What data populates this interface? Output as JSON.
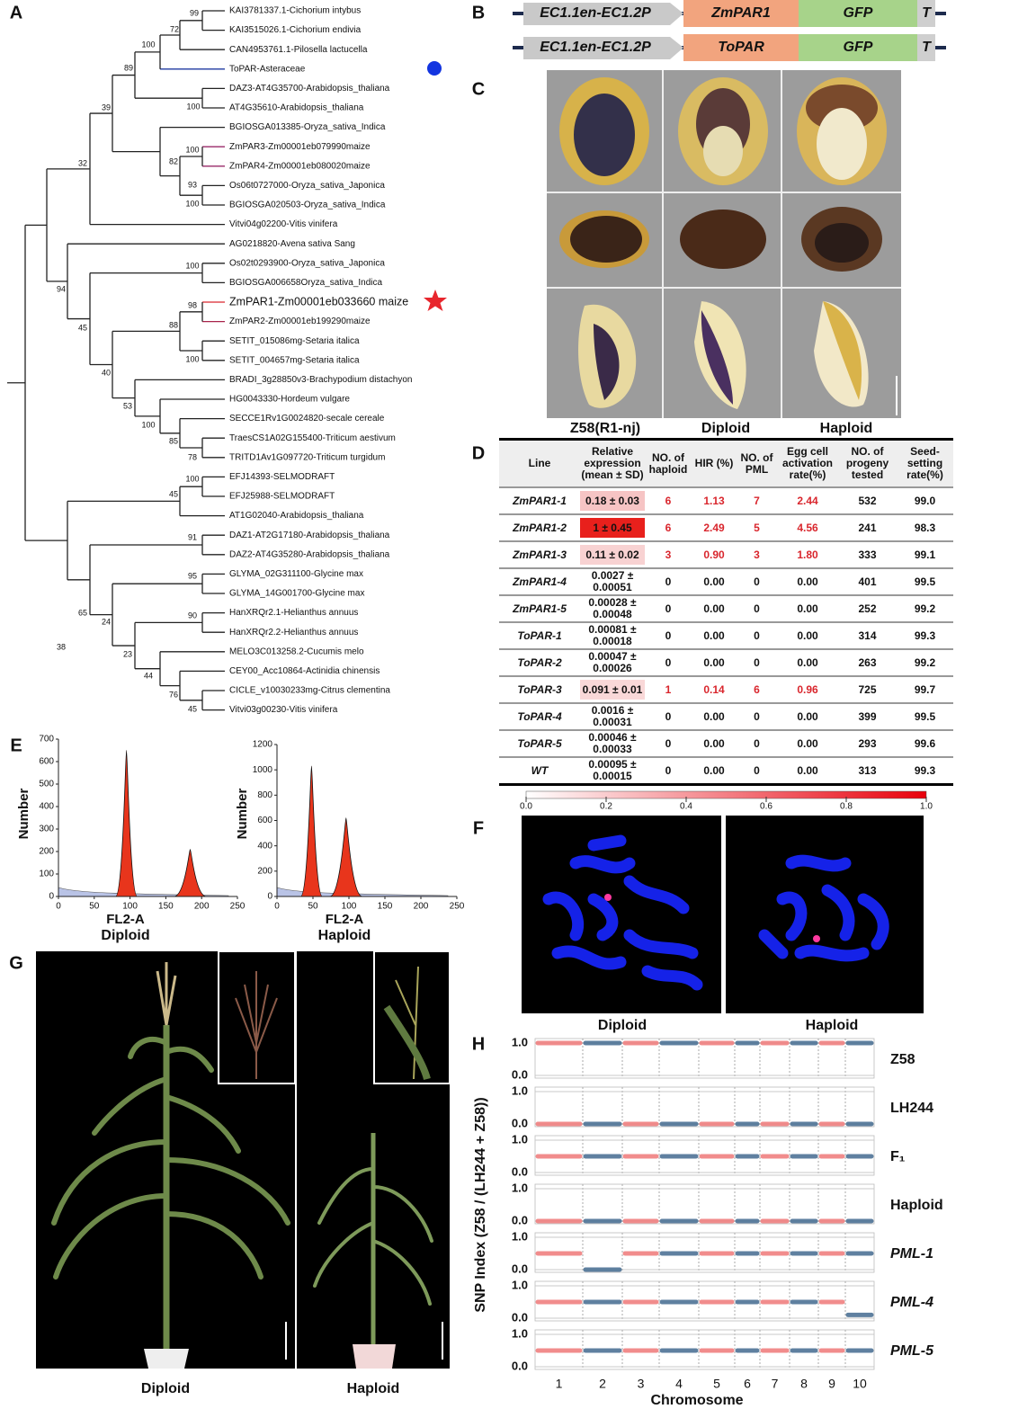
{
  "panel_labels": [
    "A",
    "B",
    "C",
    "D",
    "E",
    "F",
    "G",
    "H"
  ],
  "tree": {
    "leaves": [
      "KAI3781337.1-Cichorium intybus",
      "KAI3515026.1-Cichorium endivia",
      "CAN4953761.1-Pilosella lactucella",
      "ToPAR-Asteraceae",
      "DAZ3-AT4G35700-Arabidopsis_thaliana",
      "AT4G35610-Arabidopsis_thaliana",
      "BGIOSGA013385-Oryza_sativa_Indica",
      "ZmPAR3-Zm00001eb079990maize",
      "ZmPAR4-Zm00001eb080020maize",
      "Os06t0727000-Oryza_sativa_Japonica",
      "BGIOSGA020503-Oryza_sativa_Indica",
      "Vitvi04g02200-Vitis vinifera",
      "AG0218820-Avena sativa Sang",
      "Os02t0293900-Oryza_sativa_Japonica",
      "BGIOSGA006658Oryza_sativa_Indica",
      "ZmPAR1-Zm00001eb033660 maize",
      "ZmPAR2-Zm00001eb199290maize",
      "SETIT_015086mg-Setaria italica",
      "SETIT_004657mg-Setaria italica",
      "BRADI_3g28850v3-Brachypodium distachyon",
      "HG0043330-Hordeum vulgare",
      "SECCE1Rv1G0024820-secale cereale",
      "TraesCS1A02G155400-Triticum aestivum",
      "TRITD1Av1G097720-Triticum turgidum",
      "EFJ14393-SELMODRAFT",
      "EFJ25988-SELMODRAFT",
      "AT1G02040-Arabidopsis_thaliana",
      "DAZ1-AT2G17180-Arabidopsis_thaliana",
      "DAZ2-AT4G35280-Arabidopsis_thaliana",
      "GLYMA_02G311100-Glycine max",
      "GLYMA_14G001700-Glycine max",
      "HanXRQr2.1-Helianthus annuus",
      "HanXRQr2.2-Helianthus annuus",
      "MELO3C013258.2-Cucumis melo",
      "CEY00_Acc10864-Actinidia chinensis",
      "CICLE_v10030233mg-Citrus clementina",
      "Vitvi03g00230-Vitis vinifera"
    ],
    "bootstrap": [
      99,
      72,
      100,
      89,
      39,
      100,
      100,
      82,
      93,
      100,
      32,
      100,
      94,
      98,
      88,
      100,
      45,
      40,
      53,
      100,
      85,
      78,
      100,
      45,
      91,
      95,
      65,
      90,
      24,
      38,
      23,
      44,
      76,
      45
    ]
  },
  "constructs": [
    {
      "promoter": "EC1.1en-EC1.2P",
      "gene": "ZmPAR1",
      "reporter": "GFP",
      "terminator": "T"
    },
    {
      "promoter": "EC1.1en-EC1.2P",
      "gene": "ToPAR",
      "reporter": "GFP",
      "terminator": "T"
    }
  ],
  "kernels": {
    "columns": [
      "Z58(R1-nj)",
      "Diploid",
      "Haploid"
    ]
  },
  "table": {
    "header": [
      "Line",
      "Relative expression (mean ± SD)",
      "NO. of haploid",
      "HIR (%)",
      "NO. of PML",
      "Egg cell activation rate(%)",
      "NO. of progeny tested",
      "Seed-setting rate(%)"
    ],
    "rows": [
      [
        "ZmPAR1-1",
        "0.18 ± 0.03",
        "6",
        "1.13",
        "7",
        "2.44",
        "532",
        "99.0"
      ],
      [
        "ZmPAR1-2",
        "1 ± 0.45",
        "6",
        "2.49",
        "5",
        "4.56",
        "241",
        "98.3"
      ],
      [
        "ZmPAR1-3",
        "0.11 ± 0.02",
        "3",
        "0.90",
        "3",
        "1.80",
        "333",
        "99.1"
      ],
      [
        "ZmPAR1-4",
        "0.0027 ± 0.00051",
        "0",
        "0.00",
        "0",
        "0.00",
        "401",
        "99.5"
      ],
      [
        "ZmPAR1-5",
        "0.00028 ± 0.00048",
        "0",
        "0.00",
        "0",
        "0.00",
        "252",
        "99.2"
      ],
      [
        "ToPAR-1",
        "0.00081 ± 0.00018",
        "0",
        "0.00",
        "0",
        "0.00",
        "314",
        "99.3"
      ],
      [
        "ToPAR-2",
        "0.00047 ± 0.00026",
        "0",
        "0.00",
        "0",
        "0.00",
        "263",
        "99.2"
      ],
      [
        "ToPAR-3",
        "0.091 ± 0.01",
        "1",
        "0.14",
        "6",
        "0.96",
        "725",
        "99.7"
      ],
      [
        "ToPAR-4",
        "0.0016 ± 0.00031",
        "0",
        "0.00",
        "0",
        "0.00",
        "399",
        "99.5"
      ],
      [
        "ToPAR-5",
        "0.00046 ± 0.00033",
        "0",
        "0.00",
        "0",
        "0.00",
        "293",
        "99.6"
      ],
      [
        "WT",
        "0.00095 ± 0.00015",
        "0",
        "0.00",
        "0",
        "0.00",
        "313",
        "99.3"
      ]
    ]
  },
  "color_scale": {
    "xlim": [
      0,
      1
    ],
    "ticks": [
      {
        "value": 0,
        "label": "0.0"
      },
      {
        "value": 0.2,
        "label": "0.2"
      },
      {
        "value": 0.4,
        "label": "0.4"
      },
      {
        "value": 0.6,
        "label": "0.6"
      },
      {
        "value": 0.8,
        "label": "0.8"
      },
      {
        "value": 1,
        "label": "1.0"
      }
    ]
  },
  "flow": [
    {
      "title": "Diploid",
      "xlabel": "FL2-A",
      "ylabel": "Number",
      "xlim": [
        0,
        250
      ],
      "ylim": [
        0,
        700
      ],
      "xticks": [
        0,
        50,
        100,
        150,
        200,
        250
      ],
      "yticks": [
        0,
        100,
        200,
        300,
        400,
        500,
        600,
        700
      ],
      "peaks_x": [
        95,
        184
      ],
      "peaks_y": [
        650,
        210
      ]
    },
    {
      "title": "Haploid",
      "xlabel": "FL2-A",
      "ylabel": "Number",
      "xlim": [
        0,
        250
      ],
      "ylim": [
        0,
        1200
      ],
      "xticks": [
        0,
        50,
        100,
        150,
        200,
        250
      ],
      "yticks": [
        0,
        200,
        400,
        600,
        800,
        1000,
        1200
      ],
      "peaks_x": [
        48,
        96
      ],
      "peaks_y": [
        1030,
        620
      ]
    }
  ],
  "cytology": {
    "labels": [
      "Diploid",
      "Haploid"
    ]
  },
  "plants": {
    "labels": [
      "Diploid",
      "Haploid"
    ]
  },
  "snp": {
    "ylabel": "SNP Index (Z58 / (LH244 + Z58))",
    "xlabel": "Chromosome",
    "chromosomes": [
      "1",
      "2",
      "3",
      "4",
      "5",
      "6",
      "7",
      "8",
      "9",
      "10"
    ],
    "ylim": [
      0,
      1
    ],
    "yticks": [
      {
        "value": 0,
        "label": "0.0"
      },
      {
        "value": 1,
        "label": "1.0"
      }
    ],
    "samples": [
      {
        "name": "Z58",
        "levels": [
          1,
          1,
          1,
          1,
          1,
          1,
          1,
          1,
          1,
          1
        ]
      },
      {
        "name": "LH244",
        "levels": [
          0,
          0,
          0,
          0,
          0,
          0,
          0,
          0,
          0,
          0
        ]
      },
      {
        "name": "F₁",
        "levels": [
          0.5,
          0.5,
          0.5,
          0.5,
          0.5,
          0.5,
          0.5,
          0.5,
          0.5,
          0.5
        ]
      },
      {
        "name": "Haploid",
        "levels": [
          0,
          0,
          0,
          0,
          0,
          0,
          0,
          0,
          0,
          0
        ]
      },
      {
        "name": "PML-1",
        "levels": [
          0.5,
          0,
          0.5,
          0.5,
          0.5,
          0.5,
          0.5,
          0.5,
          0.5,
          0.5
        ]
      },
      {
        "name": "PML-4",
        "levels": [
          0.5,
          0.5,
          0.5,
          0.5,
          0.5,
          0.5,
          0.5,
          0.5,
          0.5,
          0.1
        ]
      },
      {
        "name": "PML-5",
        "levels": [
          0.5,
          0.5,
          0.5,
          0.5,
          0.5,
          0.5,
          0.5,
          0.5,
          0.5,
          0.5
        ]
      }
    ]
  }
}
